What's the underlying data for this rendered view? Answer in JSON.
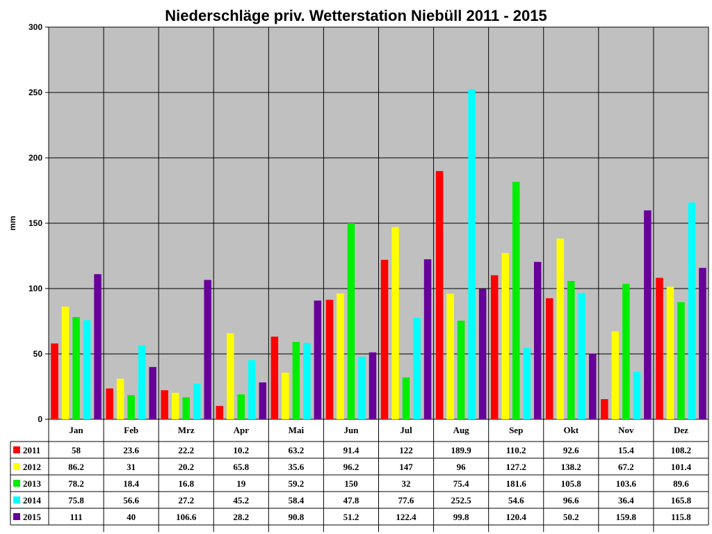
{
  "chart_data": {
    "type": "bar",
    "title": "Niederschläge priv. Wetterstation Niebüll 2011 - 2015",
    "ylabel": "mm",
    "xlabel": "",
    "ylim": [
      0,
      300
    ],
    "yticks": [
      "0",
      "50",
      "100",
      "150",
      "200",
      "250",
      "300"
    ],
    "grid": true,
    "legend": "table-below",
    "plot_background": "#c0c0c0",
    "categories": [
      "Jan",
      "Feb",
      "Mrz",
      "Apr",
      "Mai",
      "Jun",
      "Jul",
      "Aug",
      "Sep",
      "Okt",
      "Nov",
      "Dez"
    ],
    "series": [
      {
        "name": "2011",
        "color": "#ff0000",
        "values": [
          58,
          23.6,
          22.2,
          10.2,
          63.2,
          91.4,
          122,
          189.9,
          110.2,
          92.6,
          15.4,
          108.2
        ],
        "labels": [
          "58",
          "23.6",
          "22.2",
          "10.2",
          "63.2",
          "91.4",
          "122",
          "189.9",
          "110.2",
          "92.6",
          "15.4",
          "108.2"
        ]
      },
      {
        "name": "2012",
        "color": "#ffff00",
        "values": [
          86.2,
          31,
          20.2,
          65.8,
          35.6,
          96.2,
          147,
          96,
          127.2,
          138.2,
          67.2,
          101.4
        ],
        "labels": [
          "86.2",
          "31",
          "20.2",
          "65.8",
          "35.6",
          "96.2",
          "147",
          "96",
          "127.2",
          "138.2",
          "67.2",
          "101.4"
        ]
      },
      {
        "name": "2013",
        "color": "#00ee00",
        "values": [
          78.2,
          18.4,
          16.8,
          19,
          59.2,
          150,
          32,
          75.4,
          181.6,
          105.8,
          103.6,
          89.6
        ],
        "labels": [
          "78.2",
          "18.4",
          "16.8",
          "19",
          "59.2",
          "150",
          "32",
          "75.4",
          "181.6",
          "105.8",
          "103.6",
          "89.6"
        ]
      },
      {
        "name": "2014",
        "color": "#00ffff",
        "values": [
          75.8,
          56.6,
          27.2,
          45.2,
          58.4,
          47.8,
          77.6,
          252.5,
          54.6,
          96.6,
          36.4,
          165.8
        ],
        "labels": [
          "75.8",
          "56.6",
          "27.2",
          "45.2",
          "58.4",
          "47.8",
          "77.6",
          "252.5",
          "54.6",
          "96.6",
          "36.4",
          "165.8"
        ]
      },
      {
        "name": "2015",
        "color": "#660099",
        "values": [
          111,
          40,
          106.6,
          28.2,
          90.8,
          51.2,
          122.4,
          99.8,
          120.4,
          50.2,
          159.8,
          115.8
        ],
        "labels": [
          "111",
          "40",
          "106.6",
          "28.2",
          "90.8",
          "51.2",
          "122.4",
          "99.8",
          "120.4",
          "50.2",
          "159.8",
          "115.8"
        ]
      }
    ]
  }
}
